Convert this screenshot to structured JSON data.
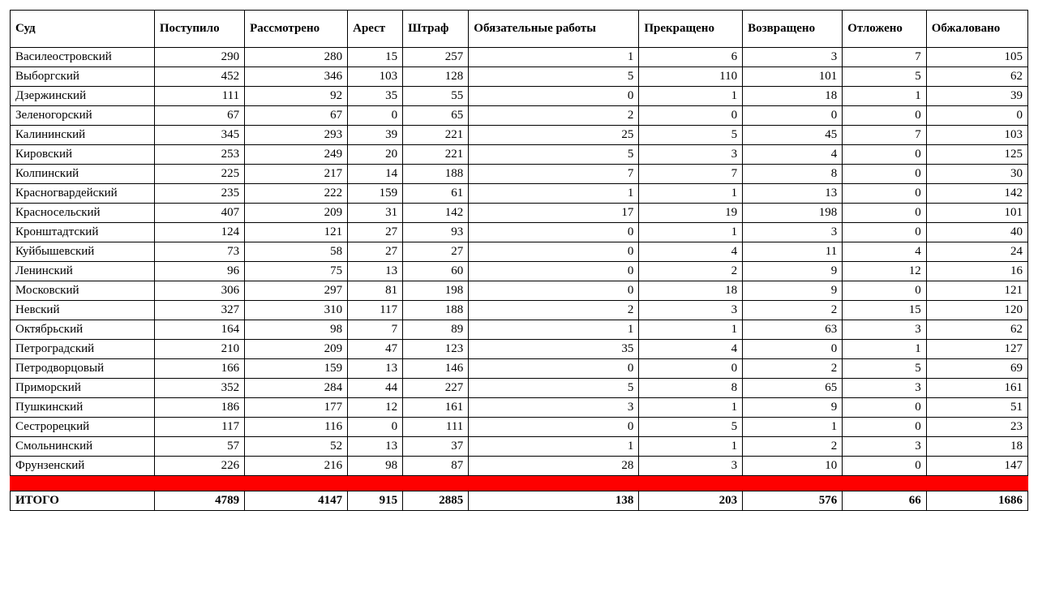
{
  "table": {
    "columns": [
      "Суд",
      "Поступило",
      "Рассмотрено",
      "Арест",
      "Штраф",
      "Обязательные работы",
      "Прекращено",
      "Возвращено",
      "Отложено",
      "Обжаловано"
    ],
    "rows": [
      [
        "Василеостровский",
        290,
        280,
        15,
        257,
        1,
        6,
        3,
        7,
        105
      ],
      [
        "Выборгский",
        452,
        346,
        103,
        128,
        5,
        110,
        101,
        5,
        62
      ],
      [
        "Дзержинский",
        111,
        92,
        35,
        55,
        0,
        1,
        18,
        1,
        39
      ],
      [
        "Зеленогорский",
        67,
        67,
        0,
        65,
        2,
        0,
        0,
        0,
        0
      ],
      [
        "Калининский",
        345,
        293,
        39,
        221,
        25,
        5,
        45,
        7,
        103
      ],
      [
        "Кировский",
        253,
        249,
        20,
        221,
        5,
        3,
        4,
        0,
        125
      ],
      [
        "Колпинский",
        225,
        217,
        14,
        188,
        7,
        7,
        8,
        0,
        30
      ],
      [
        "Красногвардейский",
        235,
        222,
        159,
        61,
        1,
        1,
        13,
        0,
        142
      ],
      [
        "Красносельский",
        407,
        209,
        31,
        142,
        17,
        19,
        198,
        0,
        101
      ],
      [
        "Кронштадтский",
        124,
        121,
        27,
        93,
        0,
        1,
        3,
        0,
        40
      ],
      [
        "Куйбышевский",
        73,
        58,
        27,
        27,
        0,
        4,
        11,
        4,
        24
      ],
      [
        "Ленинский",
        96,
        75,
        13,
        60,
        0,
        2,
        9,
        12,
        16
      ],
      [
        "Московский",
        306,
        297,
        81,
        198,
        0,
        18,
        9,
        0,
        121
      ],
      [
        "Невский",
        327,
        310,
        117,
        188,
        2,
        3,
        2,
        15,
        120
      ],
      [
        "Октябрьский",
        164,
        98,
        7,
        89,
        1,
        1,
        63,
        3,
        62
      ],
      [
        "Петроградский",
        210,
        209,
        47,
        123,
        35,
        4,
        0,
        1,
        127
      ],
      [
        "Петродворцовый",
        166,
        159,
        13,
        146,
        0,
        0,
        2,
        5,
        69
      ],
      [
        "Приморский",
        352,
        284,
        44,
        227,
        5,
        8,
        65,
        3,
        161
      ],
      [
        "Пушкинский",
        186,
        177,
        12,
        161,
        3,
        1,
        9,
        0,
        51
      ],
      [
        "Сестрорецкий",
        117,
        116,
        0,
        111,
        0,
        5,
        1,
        0,
        23
      ],
      [
        "Смольнинский",
        57,
        52,
        13,
        37,
        1,
        1,
        2,
        3,
        18
      ],
      [
        "Фрунзенский",
        226,
        216,
        98,
        87,
        28,
        3,
        10,
        0,
        147
      ]
    ],
    "total_label": "ИТОГО",
    "totals": [
      4789,
      4147,
      915,
      2885,
      138,
      203,
      576,
      66,
      1686
    ],
    "spacer_color": "#fe0000",
    "border_color": "#000000",
    "background_color": "#ffffff",
    "font_family": "Times New Roman",
    "header_fontsize": 15,
    "body_fontsize": 15
  }
}
